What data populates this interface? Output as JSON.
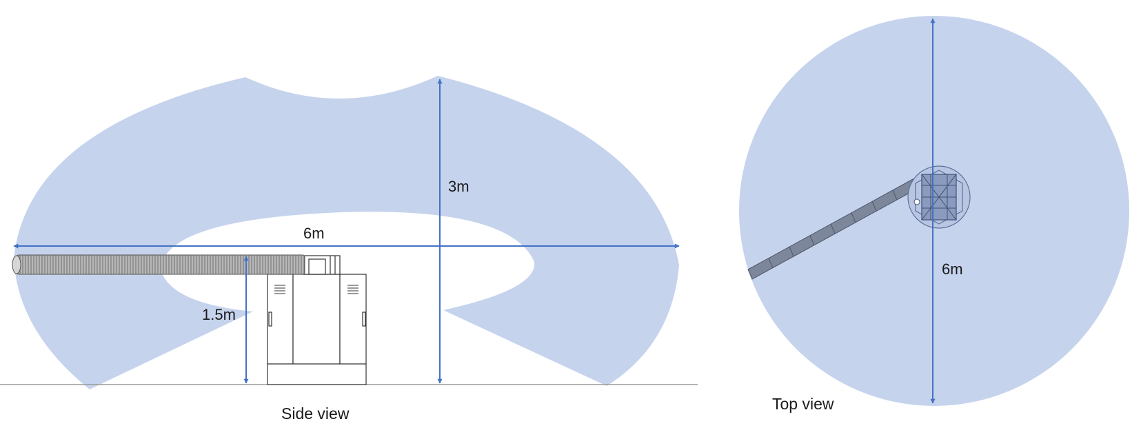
{
  "side_view": {
    "caption": "Side view",
    "dimensions": {
      "width": "6m",
      "height": "3m",
      "boom_height": "1.5m"
    }
  },
  "top_view": {
    "caption": "Top view",
    "dimensions": {
      "diameter": "6m"
    }
  },
  "colors": {
    "reach_fill": "#c5d3ed",
    "dimension_line": "#4472c4",
    "machine_stroke": "#333333",
    "ground": "#9a9a9a"
  }
}
